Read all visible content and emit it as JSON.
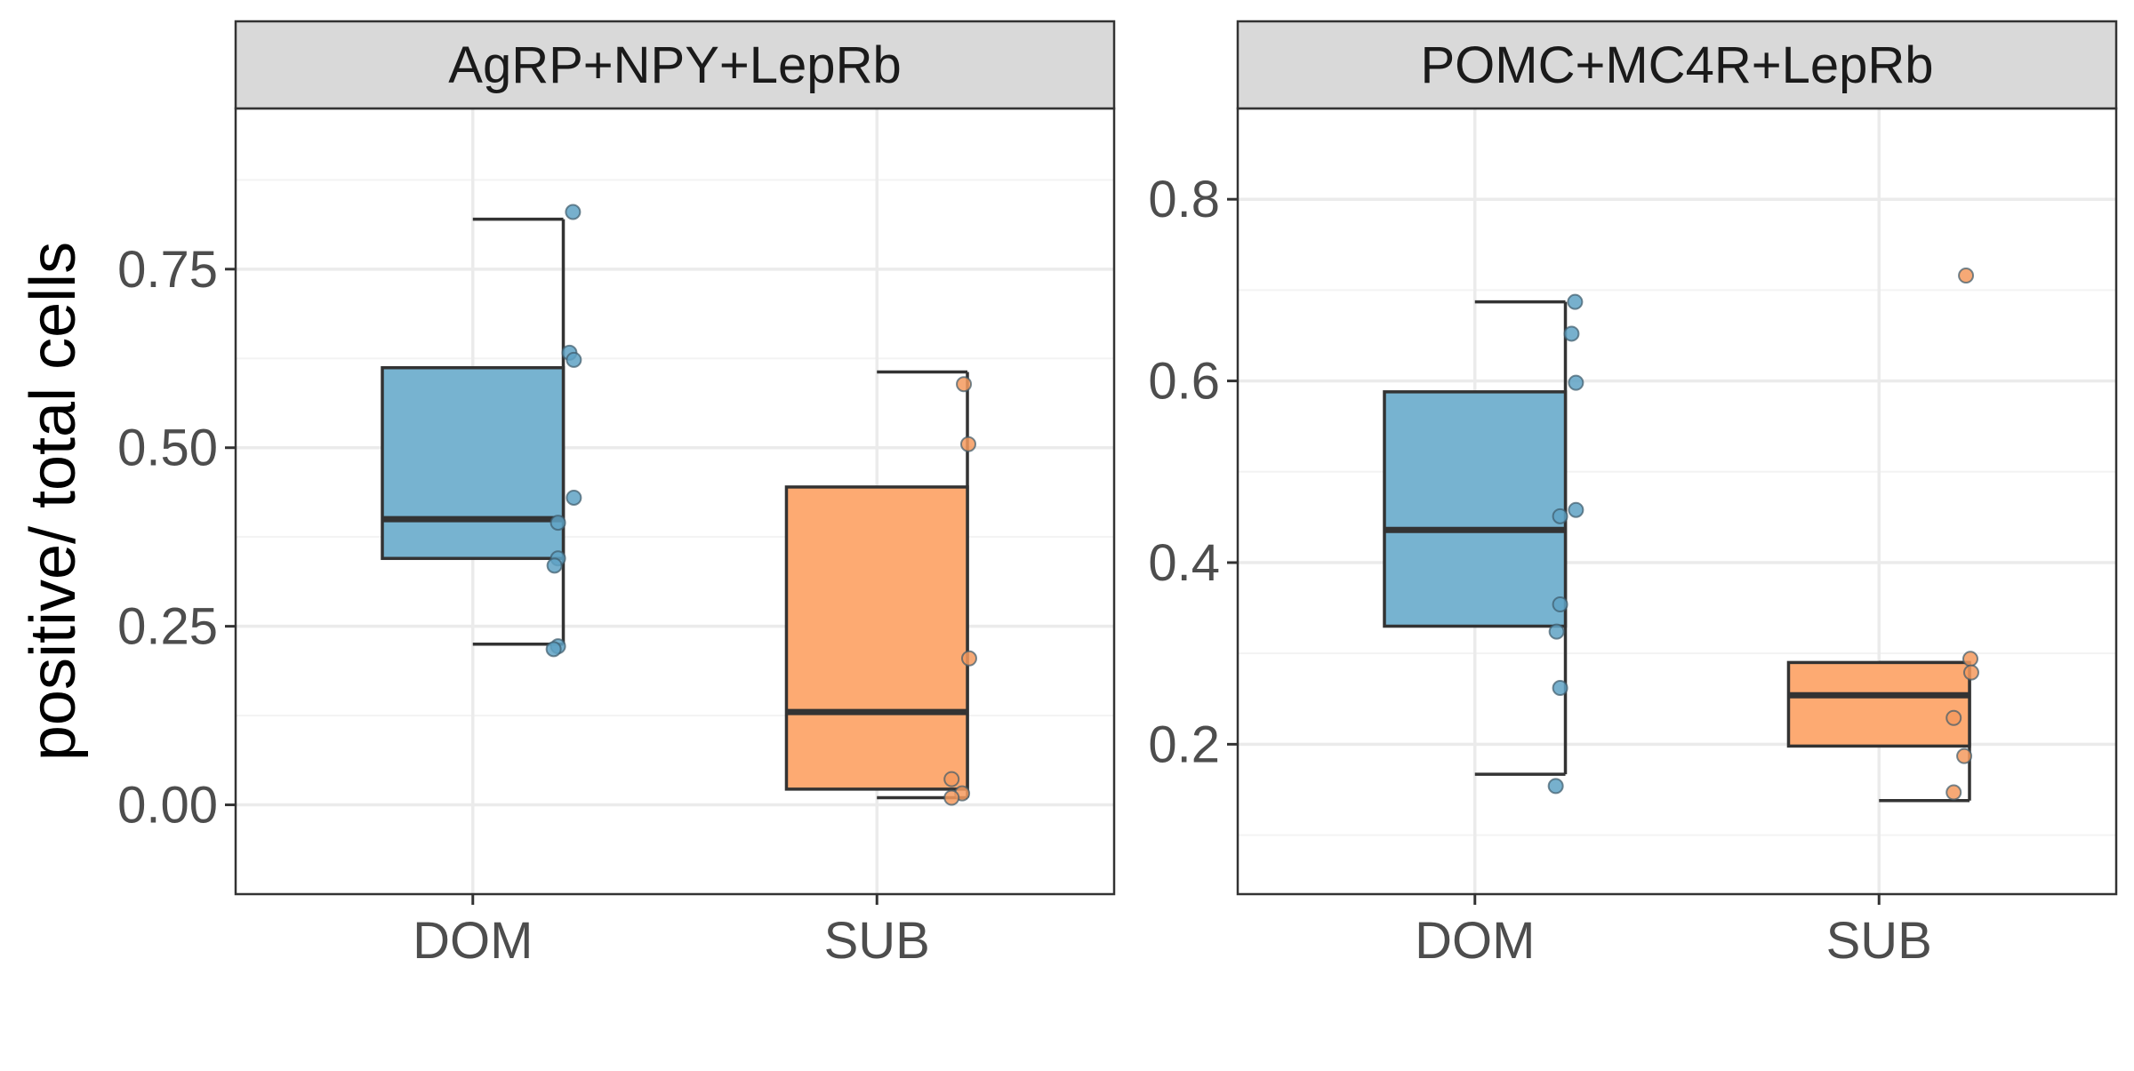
{
  "ylabel": "positive/ total cells",
  "colors": {
    "DOM": "#77b3d0",
    "SUB": "#fdaa72",
    "DOM_point": "#5fa2c4",
    "SUB_point": "#f59a5e",
    "box_line": "#333333",
    "grid_major": "#ebebeb",
    "grid_minor": "#f3f3f3",
    "strip_fill": "#d9d9d9",
    "panel_border": "#333333"
  },
  "chart_data": [
    {
      "type": "box",
      "panel_title": "AgRP+NPY+LepRb",
      "categories": [
        "DOM",
        "SUB"
      ],
      "ylim": [
        -0.125,
        0.975
      ],
      "yticks": [
        0.0,
        0.25,
        0.5,
        0.75
      ],
      "ytick_labels": [
        "0.00",
        "0.25",
        "0.50",
        "0.75"
      ],
      "grid": true,
      "boxes": [
        {
          "group": "DOM",
          "min": 0.225,
          "q1": 0.345,
          "median": 0.4,
          "q3": 0.612,
          "max": 0.82
        },
        {
          "group": "SUB",
          "min": 0.01,
          "q1": 0.022,
          "median": 0.13,
          "q3": 0.445,
          "max": 0.606
        }
      ],
      "points": [
        {
          "group": "DOM",
          "values": [
            0.83,
            0.633,
            0.623,
            0.43,
            0.395,
            0.345,
            0.335,
            0.222,
            0.218
          ]
        },
        {
          "group": "SUB",
          "values": [
            0.589,
            0.505,
            0.205,
            0.036,
            0.016,
            0.01
          ]
        }
      ]
    },
    {
      "type": "box",
      "panel_title": "POMC+MC4R+LepRb",
      "categories": [
        "DOM",
        "SUB"
      ],
      "ylim": [
        0.035,
        0.9
      ],
      "yticks": [
        0.2,
        0.4,
        0.6,
        0.8
      ],
      "ytick_labels": [
        "0.2",
        "0.4",
        "0.6",
        "0.8"
      ],
      "grid": true,
      "boxes": [
        {
          "group": "DOM",
          "min": 0.167,
          "q1": 0.33,
          "median": 0.436,
          "q3": 0.588,
          "max": 0.687
        },
        {
          "group": "SUB",
          "min": 0.138,
          "q1": 0.198,
          "median": 0.254,
          "q3": 0.29,
          "max": 0.29
        }
      ],
      "points": [
        {
          "group": "DOM",
          "values": [
            0.687,
            0.652,
            0.598,
            0.458,
            0.451,
            0.354,
            0.324,
            0.262,
            0.154
          ]
        },
        {
          "group": "SUB",
          "values": [
            0.716,
            0.294,
            0.279,
            0.229,
            0.187,
            0.147
          ]
        }
      ]
    }
  ]
}
